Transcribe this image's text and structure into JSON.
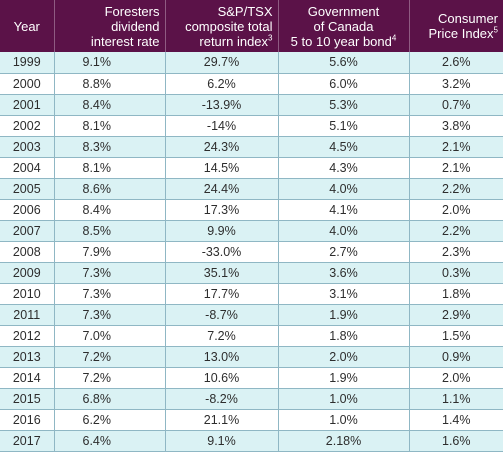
{
  "headers": {
    "year": "Year",
    "foresters_lines": [
      "Foresters",
      "dividend",
      "interest rate"
    ],
    "sp_lines": [
      "S&P/TSX",
      "composite total",
      "return index"
    ],
    "sp_sup": "3",
    "gov_lines": [
      "Government",
      "of Canada",
      "5 to 10 year bond"
    ],
    "gov_sup": "4",
    "cpi_lines": [
      "Consumer",
      "Price Index"
    ],
    "cpi_sup": "5"
  },
  "rows": [
    {
      "year": "1999",
      "foresters": "9.1%",
      "sp_tsx": "29.7%",
      "gov_bond": "5.6%",
      "cpi": "2.6%"
    },
    {
      "year": "2000",
      "foresters": "8.8%",
      "sp_tsx": "6.2%",
      "gov_bond": "6.0%",
      "cpi": "3.2%"
    },
    {
      "year": "2001",
      "foresters": "8.4%",
      "sp_tsx": "-13.9%",
      "gov_bond": "5.3%",
      "cpi": "0.7%"
    },
    {
      "year": "2002",
      "foresters": "8.1%",
      "sp_tsx": "-14%",
      "gov_bond": "5.1%",
      "cpi": "3.8%"
    },
    {
      "year": "2003",
      "foresters": "8.3%",
      "sp_tsx": "24.3%",
      "gov_bond": "4.5%",
      "cpi": "2.1%"
    },
    {
      "year": "2004",
      "foresters": "8.1%",
      "sp_tsx": "14.5%",
      "gov_bond": "4.3%",
      "cpi": "2.1%"
    },
    {
      "year": "2005",
      "foresters": "8.6%",
      "sp_tsx": "24.4%",
      "gov_bond": "4.0%",
      "cpi": "2.2%"
    },
    {
      "year": "2006",
      "foresters": "8.4%",
      "sp_tsx": "17.3%",
      "gov_bond": "4.1%",
      "cpi": "2.0%"
    },
    {
      "year": "2007",
      "foresters": "8.5%",
      "sp_tsx": "9.9%",
      "gov_bond": "4.0%",
      "cpi": "2.2%"
    },
    {
      "year": "2008",
      "foresters": "7.9%",
      "sp_tsx": "-33.0%",
      "gov_bond": "2.7%",
      "cpi": "2.3%"
    },
    {
      "year": "2009",
      "foresters": "7.3%",
      "sp_tsx": "35.1%",
      "gov_bond": "3.6%",
      "cpi": "0.3%"
    },
    {
      "year": "2010",
      "foresters": "7.3%",
      "sp_tsx": "17.7%",
      "gov_bond": "3.1%",
      "cpi": "1.8%"
    },
    {
      "year": "2011",
      "foresters": "7.3%",
      "sp_tsx": "-8.7%",
      "gov_bond": "1.9%",
      "cpi": "2.9%"
    },
    {
      "year": "2012",
      "foresters": "7.0%",
      "sp_tsx": "7.2%",
      "gov_bond": "1.8%",
      "cpi": "1.5%"
    },
    {
      "year": "2013",
      "foresters": "7.2%",
      "sp_tsx": "13.0%",
      "gov_bond": "2.0%",
      "cpi": "0.9%"
    },
    {
      "year": "2014",
      "foresters": "7.2%",
      "sp_tsx": "10.6%",
      "gov_bond": "1.9%",
      "cpi": "2.0%"
    },
    {
      "year": "2015",
      "foresters": "6.8%",
      "sp_tsx": "-8.2%",
      "gov_bond": "1.0%",
      "cpi": "1.1%"
    },
    {
      "year": "2016",
      "foresters": "6.2%",
      "sp_tsx": "21.1%",
      "gov_bond": "1.0%",
      "cpi": "1.4%"
    },
    {
      "year": "2017",
      "foresters": "6.4%",
      "sp_tsx": "9.1%",
      "gov_bond": "2.18%",
      "cpi": "1.6%"
    }
  ]
}
